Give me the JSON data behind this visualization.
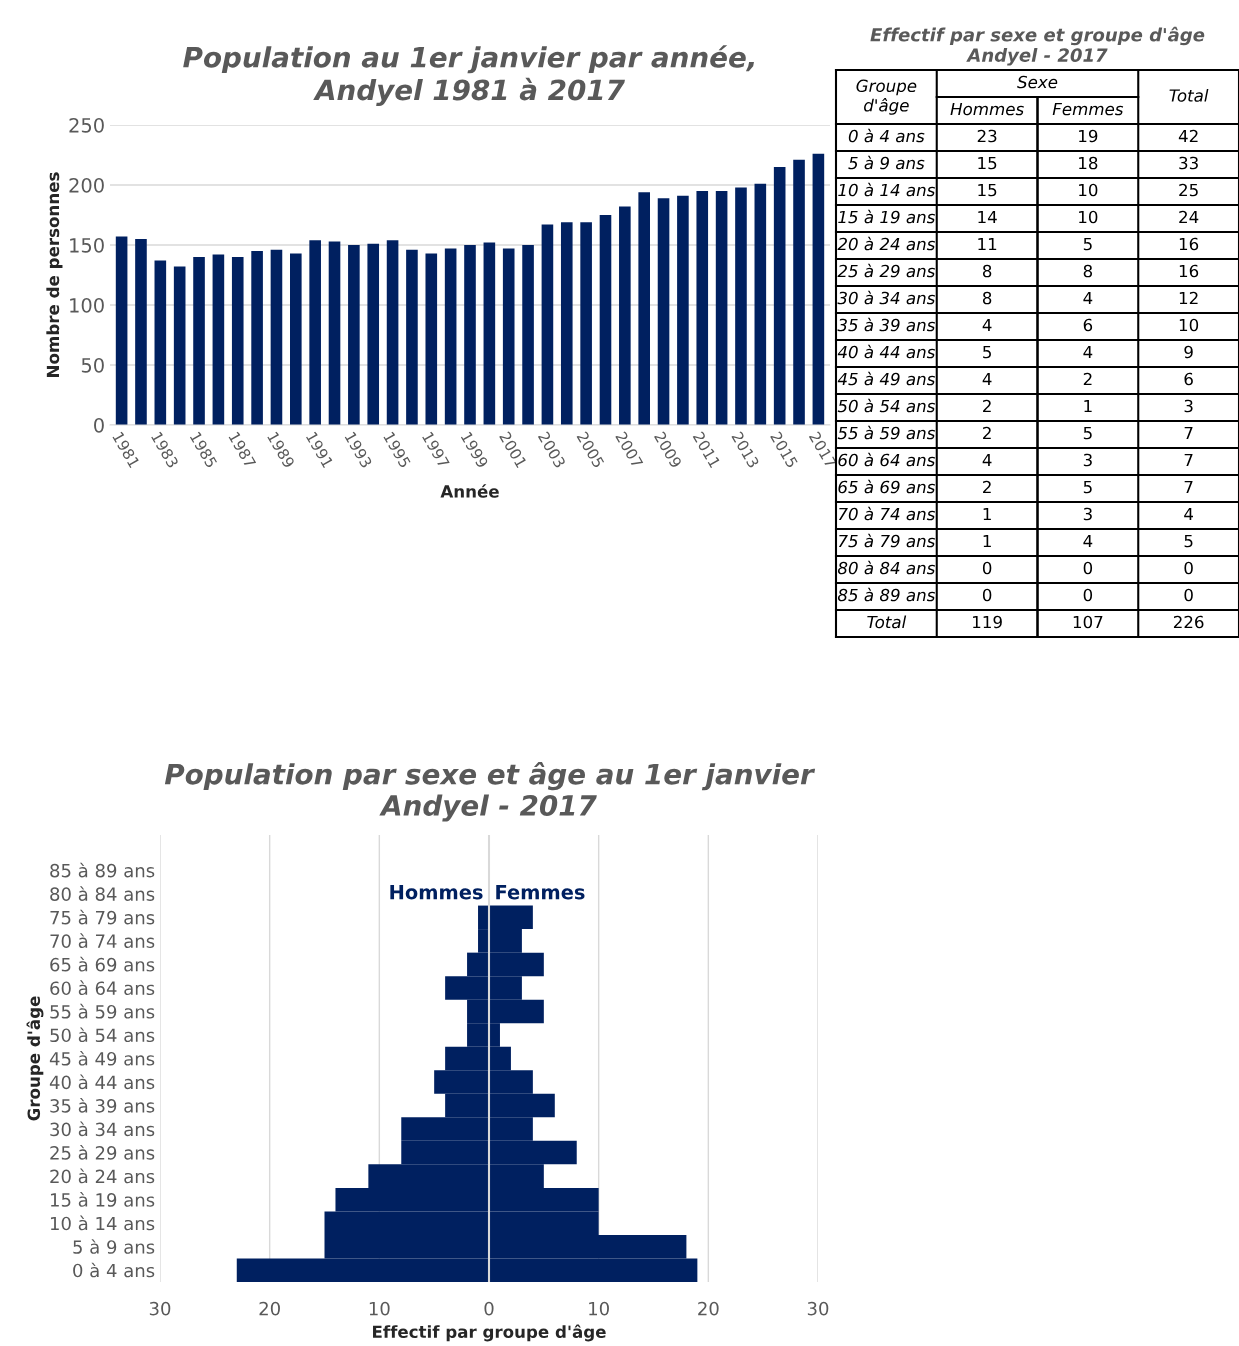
{
  "chart_data": [
    {
      "type": "bar",
      "title": "Population au 1er janvier par année,\nAndyel 1981 à 2017",
      "xlabel": "Année",
      "ylabel": "Nombre de personnes",
      "categories": [
        "1981",
        null,
        "1983",
        null,
        "1985",
        null,
        "1987",
        null,
        "1989",
        null,
        "1991",
        null,
        "1993",
        null,
        "1995",
        null,
        "1997",
        null,
        "1999",
        null,
        "2001",
        null,
        "2003",
        null,
        "2005",
        null,
        "2007",
        null,
        "2009",
        null,
        "2011",
        null,
        "2013",
        null,
        "2015",
        null,
        "2017"
      ],
      "values": [
        157,
        155,
        137,
        132,
        140,
        142,
        140,
        145,
        146,
        143,
        154,
        153,
        150,
        151,
        154,
        146,
        143,
        147,
        150,
        152,
        147,
        150,
        167,
        169,
        169,
        175,
        182,
        194,
        189,
        191,
        195,
        195,
        198,
        201,
        215,
        221,
        226
      ],
      "color": "#002060",
      "ylim": [
        0,
        250
      ],
      "yticks": [
        0,
        50,
        100,
        150,
        200,
        250
      ],
      "grid": "y"
    },
    {
      "type": "other",
      "title": "Effectif par sexe et groupe d'âge\nAndyel - 2017",
      "xlabel": "Groupe d'âge",
      "legend_title": "Sexe",
      "data_labels": true,
      "categories": [
        "0 à 4 ans",
        "5 à 9 ans",
        "10 à 14 ans",
        "15 à 19 ans",
        "20 à 24 ans",
        "25 à 29 ans",
        "30 à 34 ans",
        "35 à 39 ans",
        "40 à 44 ans",
        "45 à 49 ans",
        "50 à 54 ans",
        "55 à 59 ans",
        "60 à 64 ans",
        "65 à 69 ans",
        "70 à 74 ans",
        "75 à 79 ans",
        "80 à 84 ans",
        "85 à 89 ans",
        "Total"
      ],
      "series": [
        {
          "name": "Hommes",
          "values": [
            23,
            15,
            15,
            14,
            11,
            8,
            8,
            4,
            5,
            4,
            2,
            2,
            4,
            2,
            1,
            1,
            0,
            0,
            119
          ]
        },
        {
          "name": "Femmes",
          "values": [
            19,
            18,
            10,
            10,
            5,
            8,
            4,
            6,
            4,
            2,
            1,
            5,
            3,
            5,
            3,
            4,
            0,
            0,
            107
          ]
        },
        {
          "name": "Total",
          "values": [
            42,
            33,
            25,
            24,
            16,
            16,
            12,
            10,
            9,
            6,
            3,
            7,
            7,
            7,
            4,
            5,
            0,
            0,
            226
          ]
        }
      ]
    },
    {
      "type": "bar",
      "orientation": "horizontal",
      "stacked": true,
      "title": "Population par sexe et âge au 1er janvier\nAndyel - 2017",
      "xlabel": "Effectif par groupe d'âge",
      "ylabel": "Groupe d'âge",
      "categories": [
        "85 à 89 ans",
        "80 à 84 ans",
        "75 à 79 ans",
        "70 à 74 ans",
        "65 à 69 ans",
        "60 à 64 ans",
        "55 à 59 ans",
        "50 à 54 ans",
        "45 à 49 ans",
        "40 à 44 ans",
        "35 à 39 ans",
        "30 à 34 ans",
        "25 à 29 ans",
        "20 à 24 ans",
        "15 à 19 ans",
        "10 à 14 ans",
        "5 à 9 ans",
        "0 à 4 ans"
      ],
      "series": [
        {
          "name": "Hommes",
          "color": "#002060",
          "values": [
            0,
            0,
            -1,
            -1,
            -2,
            -4,
            -2,
            -2,
            -4,
            -5,
            -4,
            -8,
            -8,
            -11,
            -14,
            -15,
            -15,
            -23
          ]
        },
        {
          "name": "Femmes",
          "color": "#002060",
          "values": [
            0,
            0,
            4,
            3,
            5,
            3,
            5,
            1,
            2,
            4,
            6,
            4,
            8,
            5,
            10,
            10,
            18,
            19
          ]
        }
      ],
      "xlim": [
        -30,
        30
      ],
      "xticks": [
        {
          "value": -30,
          "label": "30"
        },
        {
          "value": -20,
          "label": "20"
        },
        {
          "value": -10,
          "label": "10"
        },
        0,
        10,
        20,
        30
      ],
      "grid": "x",
      "ref_lines": [
        {
          "axis": "x",
          "value": 0,
          "color": "#d9d9d9"
        }
      ]
    }
  ]
}
